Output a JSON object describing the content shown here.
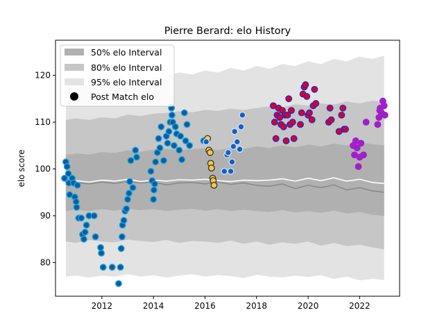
{
  "chart_data": {
    "type": "scatter",
    "title": "Pierre Berard: elo History",
    "xlabel": "",
    "ylabel": "elo score",
    "xlim": [
      2010.2,
      2023.55
    ],
    "ylim": [
      72.8,
      127.5
    ],
    "x_ticks": [
      {
        "value": 2012,
        "label": "2012"
      },
      {
        "value": 2014,
        "label": "2014"
      },
      {
        "value": 2016,
        "label": "2016"
      },
      {
        "value": 2018,
        "label": "2018"
      },
      {
        "value": 2020,
        "label": "2020"
      },
      {
        "value": 2022,
        "label": "2022"
      }
    ],
    "y_ticks": [
      {
        "value": 80,
        "label": "80"
      },
      {
        "value": 90,
        "label": "90"
      },
      {
        "value": 100,
        "label": "100"
      },
      {
        "value": 110,
        "label": "110"
      },
      {
        "value": 120,
        "label": "120"
      }
    ],
    "grid": false,
    "legend": {
      "placement": "top-left",
      "entries": [
        {
          "label": "50% elo Interval",
          "kind": "patch",
          "color": "#b0b0b0"
        },
        {
          "label": "80% elo Interval",
          "kind": "patch",
          "color": "#c6c6c6"
        },
        {
          "label": "95% elo Interval",
          "kind": "patch",
          "color": "#e3e3e3"
        },
        {
          "label": "Post Match elo",
          "kind": "marker",
          "color": "#000000"
        }
      ]
    },
    "colors": {
      "band95": "#e3e3e3",
      "band80": "#c6c6c6",
      "band50": "#b0b0b0",
      "median_line": "#8a8a8a",
      "mean_line": "#ffffff"
    },
    "interval_bands": {
      "x": [
        2010.6,
        2011.0,
        2011.5,
        2012.0,
        2012.5,
        2013.0,
        2013.5,
        2014.0,
        2014.5,
        2015.0,
        2015.5,
        2016.0,
        2016.5,
        2017.0,
        2017.5,
        2018.0,
        2018.5,
        2019.0,
        2019.5,
        2020.0,
        2020.5,
        2021.0,
        2021.5,
        2022.0,
        2022.5,
        2022.95
      ],
      "p95_low": [
        77.0,
        77.2,
        76.8,
        77.2,
        77.0,
        77.5,
        77.0,
        77.3,
        76.8,
        77.2,
        77.5,
        77.0,
        77.3,
        77.1,
        76.7,
        77.4,
        77.0,
        76.8,
        77.2,
        76.9,
        77.3,
        76.5,
        77.0,
        76.2,
        76.5,
        76.3
      ],
      "p80_low": [
        84.5,
        84.2,
        84.8,
        84.5,
        84.3,
        84.9,
        84.6,
        84.4,
        84.8,
        84.2,
        84.6,
        84.5,
        84.2,
        84.7,
        84.0,
        84.5,
        83.8,
        84.3,
        84.0,
        84.5,
        83.6,
        84.2,
        83.5,
        83.8,
        83.2,
        82.8
      ],
      "p50_low": [
        91.0,
        91.3,
        91.0,
        91.4,
        91.1,
        91.5,
        91.2,
        91.4,
        91.0,
        91.3,
        91.5,
        91.1,
        91.4,
        91.0,
        91.3,
        91.0,
        90.8,
        91.2,
        90.7,
        91.0,
        90.6,
        91.1,
        90.5,
        90.8,
        90.2,
        90.0
      ],
      "median": [
        97.0,
        97.1,
        96.8,
        97.2,
        96.9,
        97.3,
        97.0,
        97.2,
        96.6,
        97.0,
        97.1,
        96.8,
        97.2,
        96.7,
        97.0,
        96.5,
        96.3,
        96.8,
        95.8,
        96.5,
        96.0,
        96.6,
        95.5,
        96.0,
        95.3,
        95.0
      ],
      "mean": [
        97.4,
        97.5,
        97.2,
        97.6,
        97.4,
        97.8,
        97.3,
        97.6,
        97.4,
        97.7,
        97.6,
        97.8,
        97.5,
        97.3,
        97.6,
        97.5,
        97.6,
        97.9,
        97.4,
        98.0,
        97.5,
        98.1,
        97.4,
        97.8,
        97.1,
        96.9
      ],
      "p50_high": [
        103.0,
        103.3,
        103.1,
        103.6,
        103.4,
        104.0,
        103.7,
        104.1,
        104.3,
        104.0,
        104.2,
        104.4,
        104.0,
        104.5,
        104.3,
        104.8,
        104.5,
        105.0,
        104.6,
        105.2,
        104.8,
        105.4,
        105.0,
        105.6,
        105.3,
        105.0
      ],
      "p80_high": [
        110.5,
        110.8,
        110.5,
        111.0,
        110.8,
        111.6,
        111.3,
        111.8,
        112.0,
        112.3,
        112.1,
        112.6,
        112.4,
        112.9,
        112.6,
        113.0,
        113.4,
        113.2,
        113.8,
        113.5,
        114.0,
        113.8,
        114.4,
        114.0,
        114.6,
        114.2
      ],
      "p95_high": [
        118.0,
        118.5,
        117.6,
        118.8,
        118.4,
        119.0,
        118.6,
        119.4,
        120.0,
        120.6,
        120.2,
        121.0,
        120.6,
        121.6,
        121.0,
        122.0,
        121.4,
        122.4,
        122.0,
        123.0,
        122.4,
        123.5,
        123.0,
        124.0,
        123.5,
        124.2
      ]
    },
    "series": [
      {
        "fill": "#0c5da5",
        "edge": "#1ea6d8",
        "points": [
          [
            2010.55,
            98.0
          ],
          [
            2010.6,
            101.5
          ],
          [
            2010.65,
            100.5
          ],
          [
            2010.7,
            99.0
          ],
          [
            2010.72,
            97.0
          ],
          [
            2010.75,
            94.5
          ],
          [
            2010.85,
            98.0
          ],
          [
            2010.9,
            97.0
          ],
          [
            2010.95,
            94.0
          ],
          [
            2011.0,
            93.0
          ],
          [
            2011.02,
            91.8
          ],
          [
            2011.05,
            96.5
          ],
          [
            2011.1,
            89.5
          ],
          [
            2011.2,
            89.5
          ],
          [
            2011.25,
            86.0
          ],
          [
            2011.3,
            85.0
          ],
          [
            2011.35,
            86.5
          ],
          [
            2011.4,
            88.0
          ],
          [
            2011.5,
            90.0
          ],
          [
            2011.7,
            90.0
          ],
          [
            2011.75,
            85.5
          ],
          [
            2011.95,
            83.2
          ],
          [
            2011.98,
            82.0
          ],
          [
            2012.05,
            79.0
          ],
          [
            2012.4,
            79.0
          ],
          [
            2012.65,
            75.5
          ],
          [
            2012.72,
            79.0
          ],
          [
            2012.75,
            83.0
          ],
          [
            2012.78,
            85.5
          ],
          [
            2012.8,
            88.0
          ],
          [
            2012.85,
            89.0
          ],
          [
            2012.9,
            91.0
          ],
          [
            2012.95,
            91.5
          ],
          [
            2013.0,
            93.5
          ],
          [
            2013.05,
            94.8
          ],
          [
            2013.08,
            97.3
          ],
          [
            2013.12,
            101.8
          ],
          [
            2013.2,
            96.0
          ],
          [
            2013.3,
            104.0
          ],
          [
            2013.35,
            102.5
          ],
          [
            2013.9,
            99.5
          ],
          [
            2013.95,
            97.5
          ],
          [
            2014.0,
            93.5
          ],
          [
            2014.02,
            95.5
          ],
          [
            2014.05,
            96.8
          ],
          [
            2014.08,
            101.5
          ],
          [
            2014.15,
            103.5
          ],
          [
            2014.2,
            106.5
          ],
          [
            2014.25,
            104.5
          ],
          [
            2014.3,
            109.0
          ],
          [
            2014.4,
            101.8
          ],
          [
            2014.5,
            107.0
          ],
          [
            2014.55,
            105.5
          ],
          [
            2014.6,
            108.0
          ],
          [
            2014.65,
            110.0
          ],
          [
            2014.7,
            113.0
          ],
          [
            2014.72,
            111.5
          ],
          [
            2014.75,
            110.0
          ],
          [
            2014.8,
            105.0
          ],
          [
            2014.85,
            109.0
          ],
          [
            2014.9,
            107.5
          ],
          [
            2015.0,
            104.0
          ],
          [
            2015.05,
            107.0
          ],
          [
            2015.1,
            102.0
          ],
          [
            2015.2,
            112.0
          ],
          [
            2015.25,
            106.0
          ],
          [
            2015.3,
            109.5
          ],
          [
            2015.4,
            105.0
          ],
          [
            2015.95,
            106.0
          ]
        ]
      },
      {
        "fill": "#f5c842",
        "edge": "#333333",
        "points": [
          [
            2016.1,
            106.5
          ],
          [
            2016.15,
            104.0
          ],
          [
            2016.2,
            103.5
          ],
          [
            2016.22,
            101.2
          ],
          [
            2016.25,
            100.2
          ],
          [
            2016.3,
            98.0
          ],
          [
            2016.32,
            97.5
          ],
          [
            2016.35,
            96.5
          ]
        ]
      },
      {
        "fill": "#1560bd",
        "edge": "#cfe2ff",
        "points": [
          [
            2016.05,
            105.8
          ],
          [
            2016.75,
            99.5
          ],
          [
            2016.85,
            103.0
          ],
          [
            2016.9,
            103.5
          ],
          [
            2017.0,
            99.5
          ],
          [
            2017.05,
            101.5
          ],
          [
            2017.1,
            104.8
          ],
          [
            2017.15,
            108.0
          ],
          [
            2017.25,
            105.8
          ],
          [
            2017.35,
            104.2
          ],
          [
            2017.4,
            109.0
          ],
          [
            2017.45,
            111.5
          ]
        ]
      },
      {
        "fill": "#e0001b",
        "edge": "#1a2bd6",
        "points": [
          [
            2018.65,
            113.5
          ],
          [
            2018.7,
            110.0
          ],
          [
            2018.75,
            106.5
          ],
          [
            2018.8,
            111.5
          ],
          [
            2018.85,
            113.0
          ],
          [
            2018.9,
            111.0
          ],
          [
            2018.95,
            109.5
          ],
          [
            2019.0,
            112.5
          ],
          [
            2019.05,
            109.0
          ],
          [
            2019.1,
            111.5
          ],
          [
            2019.15,
            106.0
          ],
          [
            2019.2,
            111.5
          ],
          [
            2019.25,
            115.0
          ],
          [
            2019.3,
            109.5
          ],
          [
            2019.35,
            112.5
          ],
          [
            2019.4,
            110.0
          ],
          [
            2019.45,
            106.5
          ],
          [
            2019.7,
            109.5
          ],
          [
            2019.75,
            112.0
          ],
          [
            2019.8,
            116.0
          ],
          [
            2019.85,
            117.5
          ],
          [
            2019.9,
            118.0
          ],
          [
            2019.95,
            115.5
          ],
          [
            2020.0,
            111.5
          ],
          [
            2020.05,
            112.0
          ],
          [
            2020.15,
            110.5
          ],
          [
            2020.2,
            113.5
          ],
          [
            2020.25,
            117.0
          ],
          [
            2020.3,
            114.0
          ],
          [
            2020.8,
            110.0
          ],
          [
            2020.85,
            113.0
          ],
          [
            2020.9,
            110.5
          ],
          [
            2021.2,
            108.0
          ],
          [
            2021.3,
            111.5
          ],
          [
            2021.35,
            113.0
          ],
          [
            2021.4,
            108.5
          ],
          [
            2021.45,
            108.5
          ]
        ]
      },
      {
        "fill": "#a020c8",
        "edge": "#a020c8",
        "points": [
          [
            2021.75,
            105.0
          ],
          [
            2021.8,
            103.0
          ],
          [
            2021.85,
            106.0
          ],
          [
            2021.9,
            104.5
          ],
          [
            2021.95,
            100.5
          ],
          [
            2022.0,
            102.5
          ],
          [
            2022.05,
            105.5
          ],
          [
            2022.15,
            103.0
          ],
          [
            2022.25,
            110.0
          ],
          [
            2022.7,
            109.5
          ],
          [
            2022.75,
            111.0
          ],
          [
            2022.78,
            112.5
          ],
          [
            2022.8,
            113.0
          ],
          [
            2022.85,
            112.0
          ],
          [
            2022.9,
            114.5
          ],
          [
            2022.95,
            113.5
          ],
          [
            2022.98,
            111.5
          ]
        ]
      }
    ]
  }
}
